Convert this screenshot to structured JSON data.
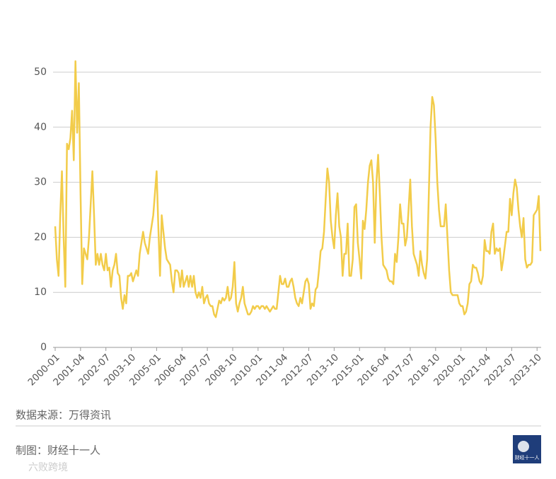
{
  "chart_data": {
    "type": "line",
    "categories": [
      "2000-01",
      null,
      null,
      null,
      null,
      null,
      null,
      null,
      null,
      null,
      null,
      null,
      null,
      null,
      null,
      "2001-04",
      null,
      null,
      null,
      null,
      null,
      null,
      null,
      null,
      null,
      null,
      null,
      null,
      null,
      null,
      "2002-07",
      null,
      null,
      null,
      null,
      null,
      null,
      null,
      null,
      null,
      null,
      null,
      null,
      null,
      null,
      "2003-10",
      null,
      null,
      null,
      null,
      null,
      null,
      null,
      null,
      null,
      null,
      null,
      null,
      null,
      null,
      "2005-01",
      null,
      null,
      null,
      null,
      null,
      null,
      null,
      null,
      null,
      null,
      null,
      null,
      null,
      null,
      "2006-04",
      null,
      null,
      null,
      null,
      null,
      null,
      null,
      null,
      null,
      null,
      null,
      null,
      null,
      null,
      "2007-07",
      null,
      null,
      null,
      null,
      null,
      null,
      null,
      null,
      null,
      null,
      null,
      null,
      null,
      null,
      "2008-10",
      null,
      null,
      null,
      null,
      null,
      null,
      null,
      null,
      null,
      null,
      null,
      null,
      null,
      null,
      "2010-01",
      null,
      null,
      null,
      null,
      null,
      null,
      null,
      null,
      null,
      null,
      null,
      null,
      null,
      null,
      "2011-04",
      null,
      null,
      null,
      null,
      null,
      null,
      null,
      null,
      null,
      null,
      null,
      null,
      null,
      null,
      "2012-07",
      null,
      null,
      null,
      null,
      null,
      null,
      null,
      null,
      null,
      null,
      null,
      null,
      null,
      null,
      "2013-10",
      null,
      null,
      null,
      null,
      null,
      null,
      null,
      null,
      null,
      null,
      null,
      null,
      null,
      null,
      "2015-01",
      null,
      null,
      null,
      null,
      null,
      null,
      null,
      null,
      null,
      null,
      null,
      null,
      null,
      null,
      "2016-04",
      null,
      null,
      null,
      null,
      null,
      null,
      null,
      null,
      null,
      null,
      null,
      null,
      null,
      null,
      "2017-07",
      null,
      null,
      null,
      null,
      null,
      null,
      null,
      null,
      null,
      null,
      null,
      null,
      null,
      null,
      "2018-10",
      null,
      null,
      null,
      null,
      null,
      null,
      null,
      null,
      null,
      null,
      null,
      null,
      null,
      null,
      "2020-01",
      null,
      null,
      null,
      null,
      null,
      null,
      null,
      null,
      null,
      null,
      null,
      null,
      null,
      null,
      "2021-04",
      null,
      null,
      null,
      null,
      null,
      null,
      null,
      null,
      null,
      null,
      null,
      null,
      null,
      null,
      "2022-07",
      null,
      null,
      null,
      null,
      null,
      null,
      null,
      null,
      null,
      null,
      null,
      null,
      null,
      null,
      "2023-10",
      null,
      null
    ],
    "values": [
      22,
      16,
      13,
      24,
      32,
      20,
      11,
      37,
      36,
      38,
      43,
      34,
      52,
      39,
      48,
      28,
      11.5,
      18,
      17,
      16,
      20,
      26,
      32,
      24,
      15,
      17,
      15,
      17,
      15,
      14,
      17,
      14,
      14.5,
      11,
      14,
      15,
      17,
      13.5,
      13,
      9,
      7,
      9.5,
      8,
      13,
      13,
      13.5,
      12,
      13,
      14,
      13,
      17,
      19,
      21,
      19,
      18,
      17,
      20,
      22,
      24,
      28,
      32,
      22,
      13,
      24,
      21,
      18,
      16,
      15.5,
      15,
      12,
      10,
      14,
      14,
      13.5,
      11,
      14,
      11,
      12,
      13,
      11,
      13,
      11,
      13,
      10,
      9,
      10,
      9,
      11,
      8,
      9,
      9.5,
      8,
      7.5,
      7.5,
      6,
      5.5,
      7,
      8.5,
      8,
      9,
      8.5,
      9,
      11,
      8.5,
      9,
      11,
      15.5,
      8,
      6.5,
      8,
      9,
      11,
      8,
      7,
      6,
      6,
      6.5,
      7.5,
      7,
      7.5,
      7.5,
      7,
      7.5,
      7.5,
      7,
      7.5,
      7,
      6.5,
      7,
      7.5,
      7,
      7,
      10,
      13,
      11.5,
      11.5,
      12.5,
      11,
      11,
      12,
      12.5,
      11,
      9,
      8,
      7.5,
      9,
      8,
      10,
      12,
      12.5,
      11.5,
      7,
      8,
      7.5,
      10.5,
      11,
      14,
      17.5,
      18,
      21,
      27,
      32.5,
      30,
      23,
      20,
      18,
      24,
      28,
      22,
      20,
      13,
      17,
      17,
      22.5,
      13,
      13,
      16,
      25.5,
      26,
      19,
      16,
      12.5,
      23,
      21.5,
      25,
      30,
      33,
      34,
      30,
      19,
      30,
      35,
      28,
      20,
      15,
      14.5,
      14,
      12.5,
      12,
      12,
      11.5,
      17,
      15.5,
      20,
      26,
      22.5,
      22.5,
      18.5,
      20,
      25,
      30.5,
      22,
      17,
      16,
      15,
      13,
      17.5,
      15,
      13.5,
      12.5,
      16,
      28,
      40,
      45.5,
      44,
      38,
      30,
      25,
      22,
      22,
      22,
      26,
      20,
      14,
      10,
      9.5,
      9.5,
      9.5,
      9.5,
      8,
      7.5,
      7.5,
      6,
      6.5,
      8,
      11.5,
      12,
      15,
      14.5,
      14.5,
      13.5,
      12,
      11.5,
      13,
      19.5,
      17.5,
      17.5,
      17,
      21,
      22.5,
      17,
      18,
      17.5,
      18,
      14,
      16,
      18.5,
      21,
      21,
      27,
      24,
      28,
      30.5,
      29,
      25,
      22,
      20,
      23.5,
      16,
      14.5,
      15,
      15,
      15.5,
      24,
      24.5,
      25,
      27.5,
      17.5
    ],
    "color": "#f2cc4a",
    "ylim": [
      0,
      50
    ],
    "yticks": [
      0,
      10,
      20,
      30,
      40,
      50
    ],
    "grid": true
  },
  "footer": {
    "source": "数据来源：万得资讯",
    "credit": "制图：财经十一人",
    "logo": "财经十一人",
    "watermark": "六败跨境"
  }
}
